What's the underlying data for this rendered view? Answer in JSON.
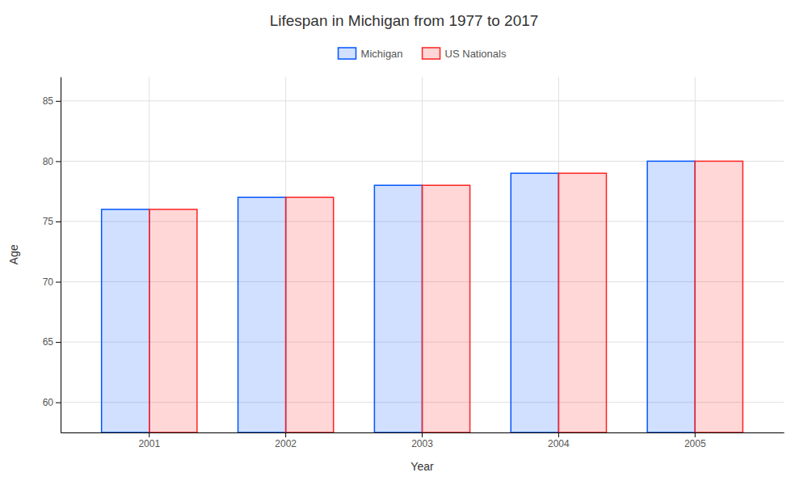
{
  "chart_data": {
    "type": "bar",
    "title": "Lifespan in Michigan from 1977 to 2017",
    "xlabel": "Year",
    "ylabel": "Age",
    "categories": [
      2001,
      2002,
      2003,
      2004,
      2005
    ],
    "series": [
      {
        "name": "Michigan",
        "color": "#0055ff",
        "values": [
          76.0,
          77.0,
          78.0,
          79.0,
          80.0
        ]
      },
      {
        "name": "US Nationals",
        "color": "#ff2222",
        "values": [
          76.0,
          77.0,
          78.0,
          79.0,
          80.0
        ]
      }
    ],
    "ylim": [
      57.5,
      87
    ],
    "yticks": [
      60,
      65,
      70,
      75,
      80,
      85
    ],
    "grid": true,
    "legend": "top"
  }
}
